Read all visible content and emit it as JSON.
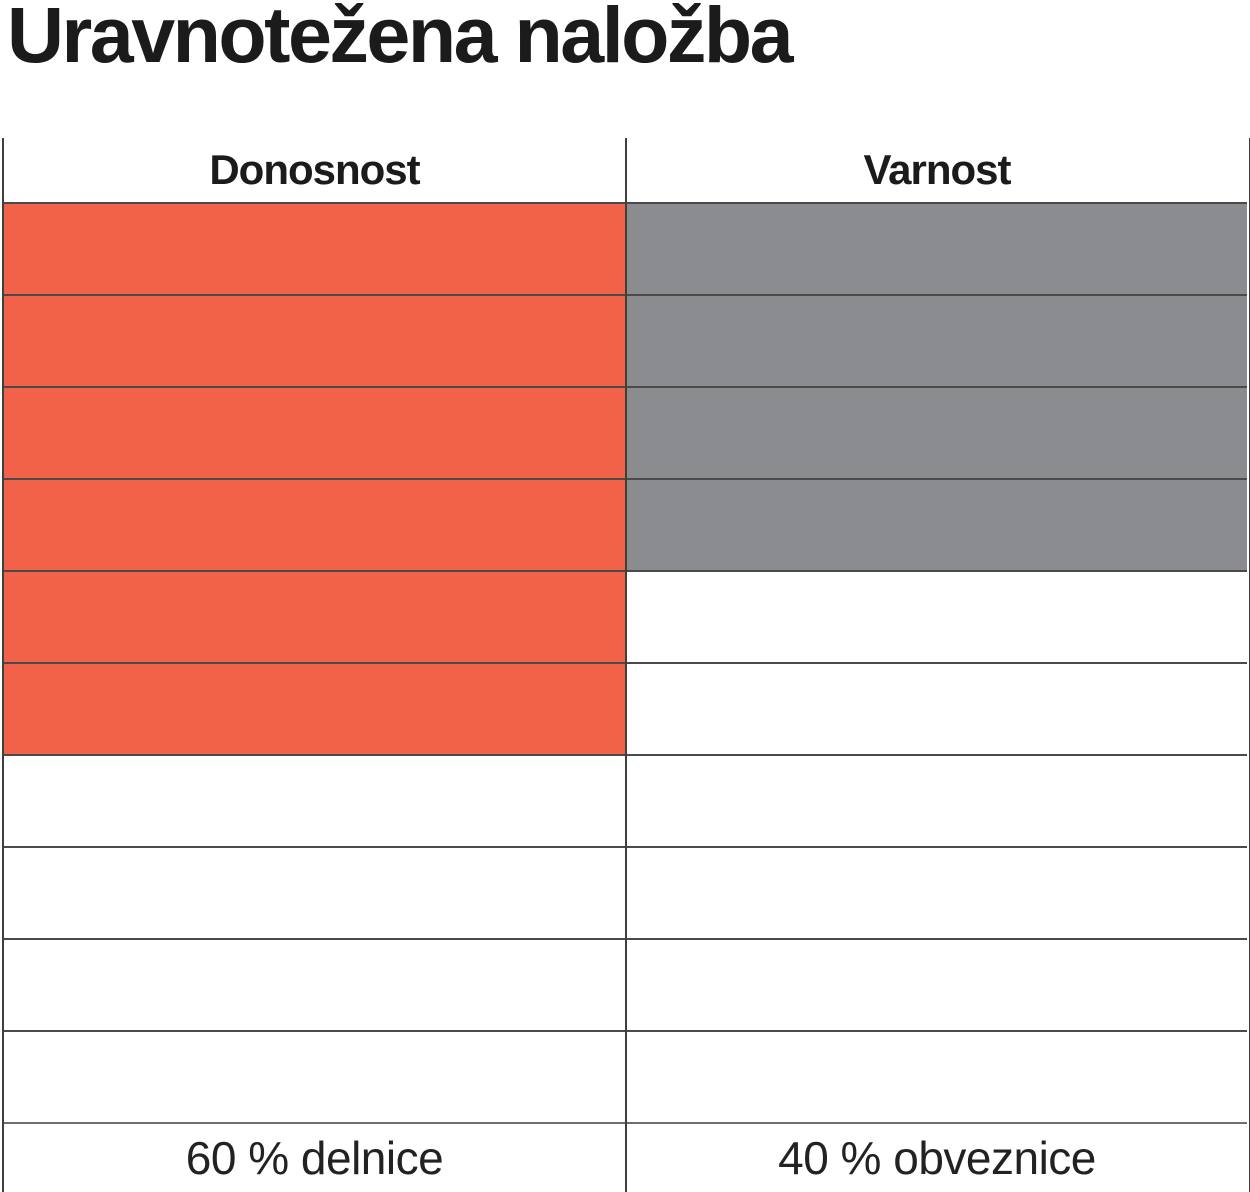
{
  "title": "Uravnotežena naložba",
  "colors": {
    "returns_fill": "#f26249",
    "safety_fill": "#8a8c8f",
    "grid_line": "#4a4a4a",
    "text": "#1b1b1b"
  },
  "chart_data": {
    "type": "table",
    "title": "Uravnotežena naložba",
    "rows_per_column": 10,
    "legend_position": "bottom",
    "columns": [
      {
        "header": "Donosnost",
        "footer": "60 % delnice",
        "value_pct": 60,
        "filled_cells": 6,
        "total_cells": 10,
        "fill_color": "#f26249"
      },
      {
        "header": "Varnost",
        "footer": "40 % obveznice",
        "value_pct": 40,
        "filled_cells": 4,
        "total_cells": 10,
        "fill_color": "#8a8c8f"
      }
    ]
  }
}
